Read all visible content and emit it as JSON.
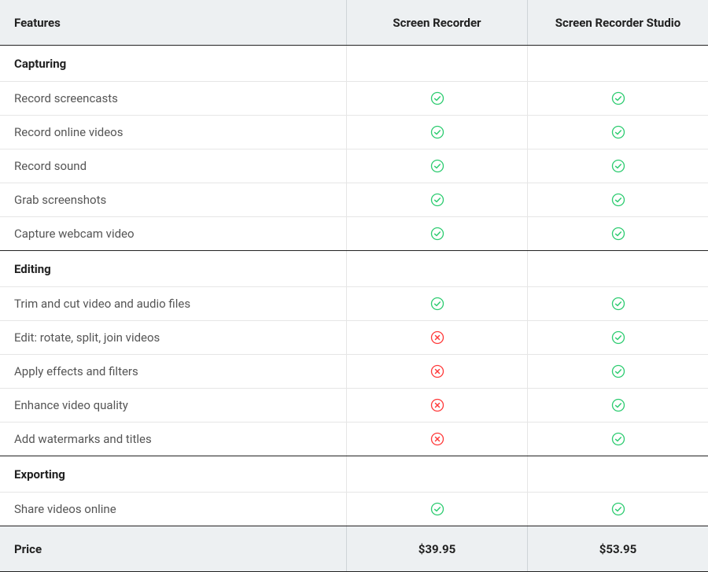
{
  "colors": {
    "check": "#2ecc71",
    "cross": "#ff3b3b",
    "header_bg": "#edf0f2",
    "text_dark": "#212121",
    "text_body": "#555555",
    "border_light": "#e6e6e6",
    "border_dark": "#222222"
  },
  "header": {
    "features": "Features",
    "product1": "Screen Recorder",
    "product2": "Screen Recorder Studio"
  },
  "sections": {
    "capturing": {
      "title": "Capturing"
    },
    "editing": {
      "title": "Editing"
    },
    "exporting": {
      "title": "Exporting"
    }
  },
  "rows": {
    "record_screencasts": {
      "label": "Record screencasts",
      "p1": "check",
      "p2": "check"
    },
    "record_online_videos": {
      "label": "Record online videos",
      "p1": "check",
      "p2": "check"
    },
    "record_sound": {
      "label": "Record sound",
      "p1": "check",
      "p2": "check"
    },
    "grab_screenshots": {
      "label": "Grab screenshots",
      "p1": "check",
      "p2": "check"
    },
    "capture_webcam": {
      "label": "Capture webcam video",
      "p1": "check",
      "p2": "check"
    },
    "trim_cut": {
      "label": "Trim and cut video and audio files",
      "p1": "check",
      "p2": "check"
    },
    "edit_rotate": {
      "label": "Edit: rotate, split, join videos",
      "p1": "cross",
      "p2": "check"
    },
    "apply_effects": {
      "label": "Apply effects and filters",
      "p1": "cross",
      "p2": "check"
    },
    "enhance_quality": {
      "label": "Enhance video quality",
      "p1": "cross",
      "p2": "check"
    },
    "add_watermarks": {
      "label": "Add watermarks and titles",
      "p1": "cross",
      "p2": "check"
    },
    "share_online": {
      "label": "Share videos online",
      "p1": "check",
      "p2": "check"
    }
  },
  "price": {
    "label": "Price",
    "p1": "$39.95",
    "p2": "$53.95"
  }
}
